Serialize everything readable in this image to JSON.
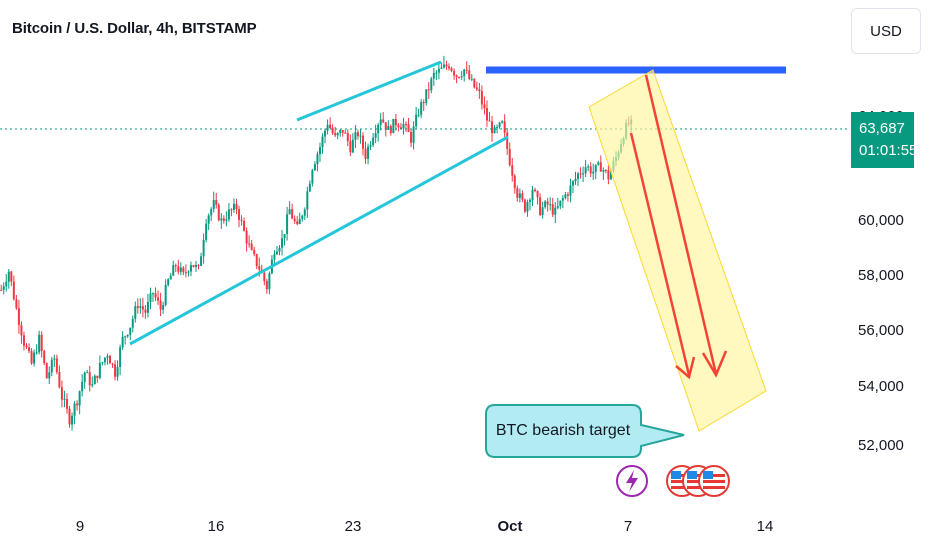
{
  "header": {
    "title": "Bitcoin / U.S. Dollar, 4h, BITSTAMP"
  },
  "toolbar": {
    "currency_label": "USD"
  },
  "price_tag": {
    "price": "63,687",
    "countdown": "01:01:55"
  },
  "annotation": {
    "callout_text": "BTC bearish target"
  },
  "colors": {
    "up": "#089981",
    "down": "#f23645",
    "trendline": "#26c6da",
    "resistance": "#2962ff",
    "projection_fill": "#fff59d",
    "projection_border": "#fdd835",
    "arrow": "#f44336"
  },
  "icons": [
    "lightning-event-icon",
    "us-flag-icon",
    "us-flag-icon",
    "us-flag-icon"
  ],
  "chart_data": {
    "type": "candlestick",
    "y_tick_labels": [
      "64,000",
      "60,000",
      "58,000",
      "56,000",
      "54,000",
      "52,000"
    ],
    "x_tick_labels": [
      "9",
      "16",
      "23",
      "Oct",
      "7",
      "14"
    ],
    "ylim": [
      51000,
      67500
    ],
    "last_price": 63687,
    "close_path": [
      [
        0,
        57500
      ],
      [
        3,
        58200
      ],
      [
        6,
        56800
      ],
      [
        9,
        55600
      ],
      [
        12,
        54800
      ],
      [
        15,
        55700
      ],
      [
        18,
        54300
      ],
      [
        21,
        55000
      ],
      [
        24,
        53600
      ],
      [
        27,
        52800
      ],
      [
        30,
        53500
      ],
      [
        33,
        54500
      ],
      [
        36,
        54000
      ],
      [
        39,
        54700
      ],
      [
        42,
        55200
      ],
      [
        45,
        54500
      ],
      [
        48,
        55700
      ],
      [
        51,
        56200
      ],
      [
        54,
        57000
      ],
      [
        57,
        56700
      ],
      [
        60,
        57400
      ],
      [
        63,
        56800
      ],
      [
        66,
        57800
      ],
      [
        69,
        58400
      ],
      [
        72,
        58000
      ],
      [
        75,
        58500
      ],
      [
        78,
        58200
      ],
      [
        81,
        60100
      ],
      [
        84,
        60600
      ],
      [
        87,
        60000
      ],
      [
        90,
        60300
      ],
      [
        93,
        60500
      ],
      [
        96,
        59600
      ],
      [
        99,
        58800
      ],
      [
        102,
        58300
      ],
      [
        105,
        57600
      ],
      [
        108,
        59000
      ],
      [
        111,
        59300
      ],
      [
        114,
        60400
      ],
      [
        117,
        59700
      ],
      [
        120,
        60600
      ],
      [
        123,
        62000
      ],
      [
        126,
        62700
      ],
      [
        129,
        63600
      ],
      [
        132,
        63000
      ],
      [
        135,
        63300
      ],
      [
        138,
        62700
      ],
      [
        141,
        63200
      ],
      [
        144,
        62400
      ],
      [
        147,
        63200
      ],
      [
        150,
        63800
      ],
      [
        153,
        63300
      ],
      [
        156,
        63600
      ],
      [
        159,
        63500
      ],
      [
        162,
        63000
      ],
      [
        165,
        64000
      ],
      [
        168,
        64600
      ],
      [
        171,
        65300
      ],
      [
        174,
        65500
      ],
      [
        177,
        65700
      ],
      [
        180,
        65300
      ],
      [
        183,
        65500
      ],
      [
        186,
        65000
      ],
      [
        189,
        64600
      ],
      [
        192,
        63700
      ],
      [
        195,
        63200
      ],
      [
        198,
        63500
      ],
      [
        201,
        62200
      ],
      [
        204,
        61000
      ],
      [
        207,
        60500
      ],
      [
        210,
        61200
      ],
      [
        213,
        60400
      ],
      [
        216,
        60600
      ],
      [
        219,
        60300
      ],
      [
        222,
        60800
      ],
      [
        225,
        61200
      ],
      [
        228,
        61700
      ],
      [
        231,
        62000
      ],
      [
        234,
        61800
      ],
      [
        237,
        62000
      ],
      [
        240,
        61600
      ],
      [
        243,
        62300
      ],
      [
        246,
        63200
      ],
      [
        249,
        63700
      ]
    ]
  }
}
